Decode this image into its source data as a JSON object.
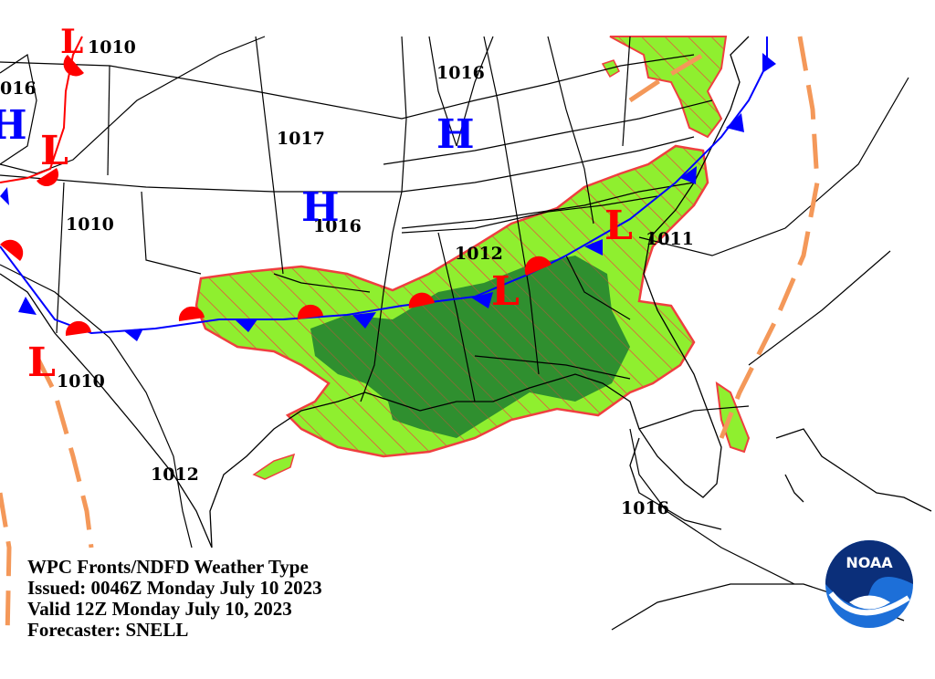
{
  "caption": {
    "title": "WPC Fronts/NDFD Weather Type",
    "issued": "Issued: 0046Z Monday July 10 2023",
    "valid": "Valid 12Z Monday July 10, 2023",
    "forecaster": "Forecaster: SNELL"
  },
  "logo": {
    "text": "NOAA"
  },
  "pressure_labels": [
    "1010",
    "016",
    "1016",
    "1017",
    "1016",
    "1010",
    "1012",
    "1011",
    "1010",
    "1012",
    "1016"
  ],
  "pressure_centers": {
    "high_symbol": "H",
    "low_symbol": "L"
  },
  "colors": {
    "rain": "#8fef2f",
    "heavy_rain": "#2f8f2f",
    "rain_outline": "#ef3f3f",
    "cold_front": "#0000ff",
    "warm_front": "#ff0000",
    "trough": "#f49859",
    "high": "#0000ff",
    "low": "#ff0000"
  }
}
